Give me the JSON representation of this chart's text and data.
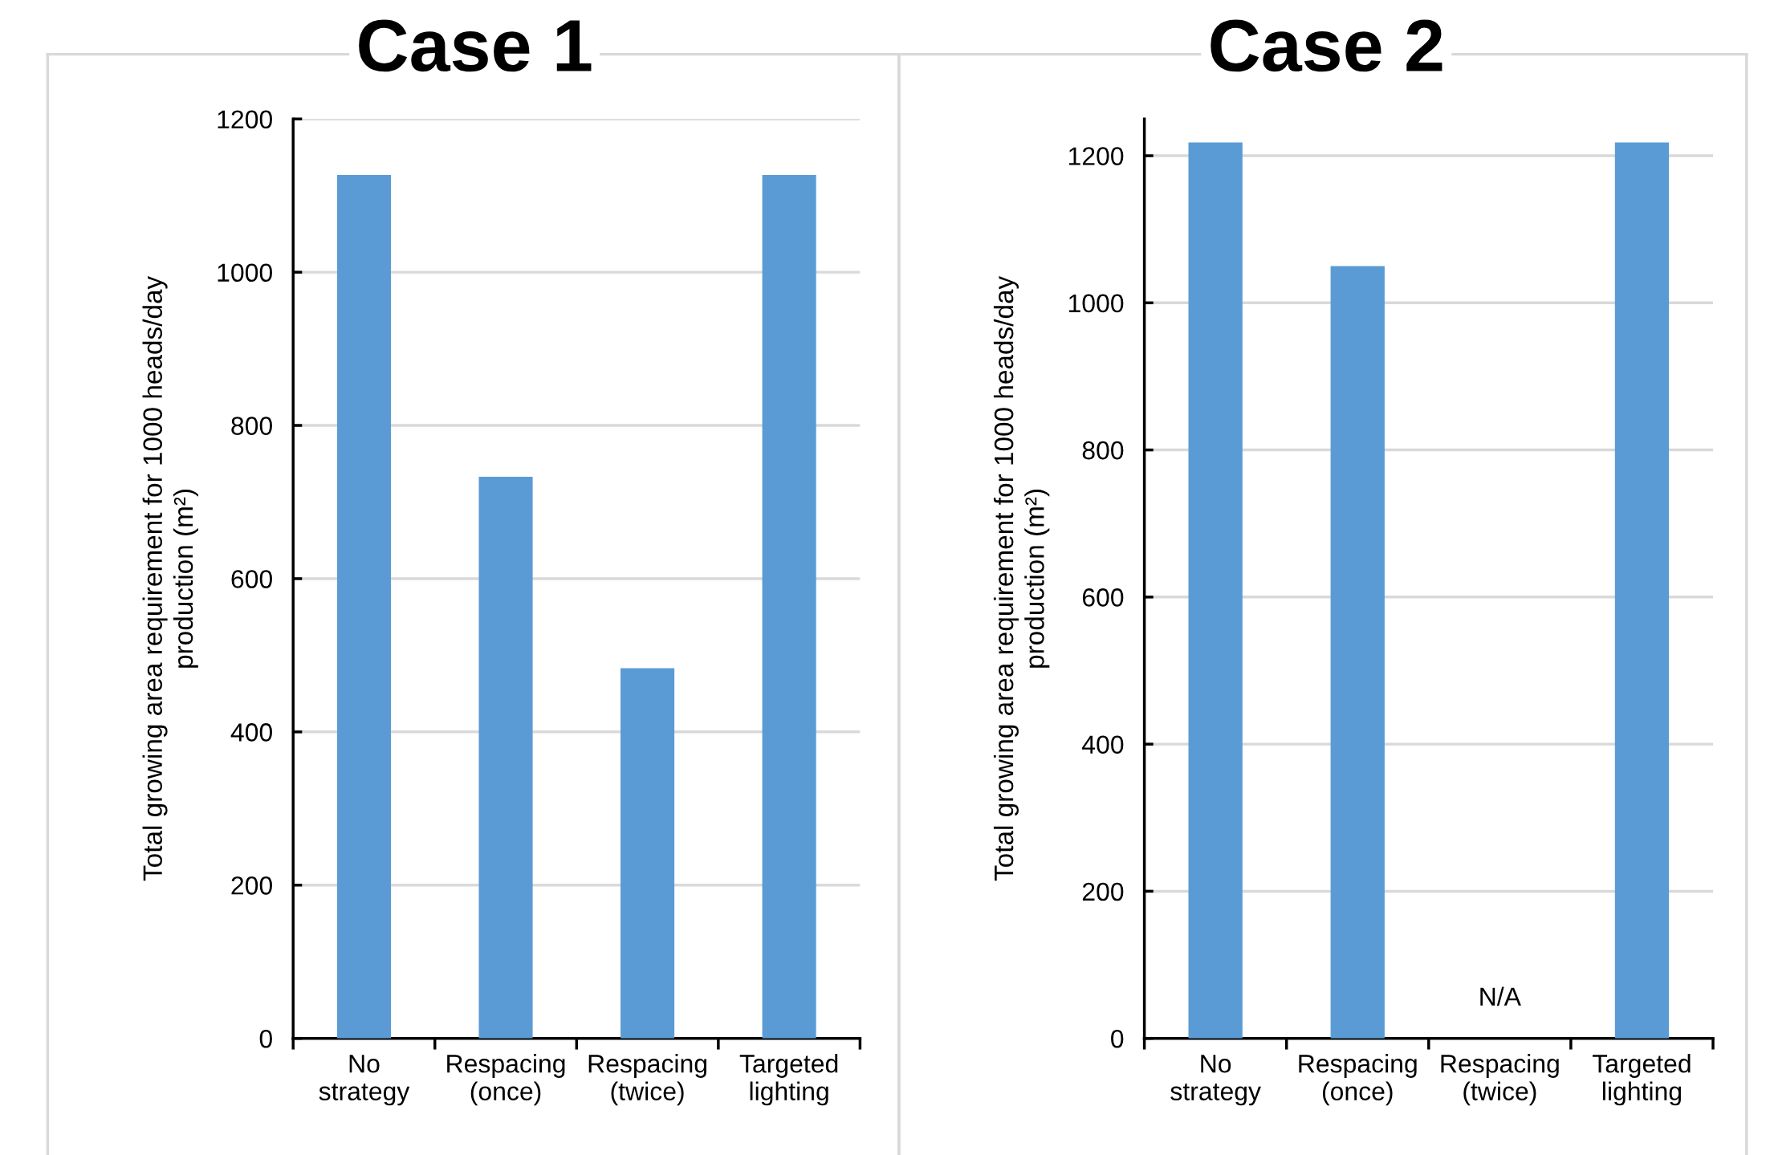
{
  "chart_data": [
    {
      "type": "bar",
      "title": "Case 1",
      "ylabel": "Total growing area requirement for 1000 heads/day\nproduction (m²)",
      "categories": [
        "No\nstrategy",
        "Respacing\n(once)",
        "Respacing\n(twice)",
        "Targeted\nlighting"
      ],
      "values": [
        1127,
        733,
        483,
        1127
      ],
      "color": "#5b9bd5",
      "ylim": [
        0,
        1200
      ],
      "yticks": [
        0,
        200,
        400,
        600,
        800,
        1000,
        1200
      ],
      "grid": "y"
    },
    {
      "type": "bar",
      "title": "Case 2",
      "ylabel": "Total growing area requirement for 1000 heads/day\nproduction (m²)",
      "categories": [
        "No\nstrategy",
        "Respacing\n(once)",
        "Respacing\n(twice)",
        "Targeted\nlighting"
      ],
      "values": [
        1218,
        1050,
        null,
        1218
      ],
      "color": "#5b9bd5",
      "ylim": [
        0,
        1250
      ],
      "yticks": [
        0,
        200,
        400,
        600,
        800,
        1000,
        1200
      ],
      "grid": "y",
      "annotations": [
        "N/A"
      ]
    }
  ]
}
